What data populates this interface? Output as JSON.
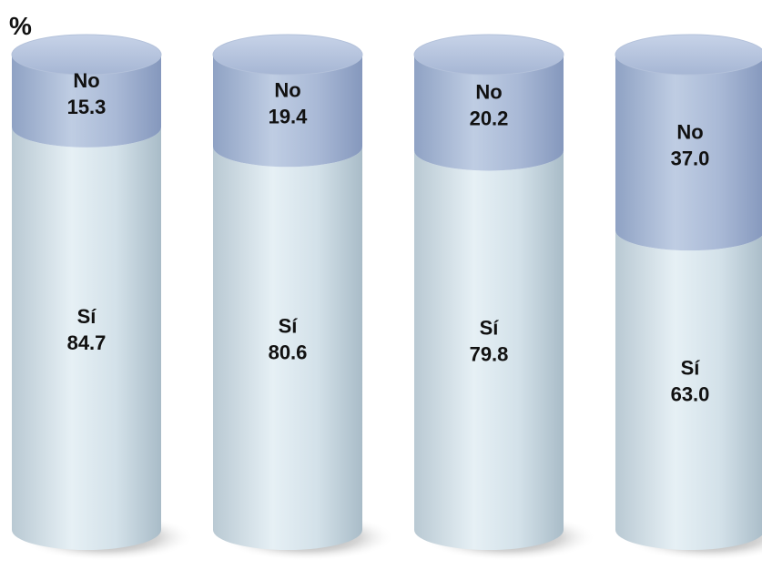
{
  "chart_data": {
    "type": "bar",
    "stacked": true,
    "style": "3d-cylinder",
    "unit_label": "%",
    "categories": [
      "",
      "",
      "",
      ""
    ],
    "series": [
      {
        "name": "Sí",
        "values": [
          84.7,
          80.6,
          79.8,
          63.0
        ],
        "color": "#d6e3ea"
      },
      {
        "name": "No",
        "values": [
          15.3,
          19.4,
          20.2,
          37.0
        ],
        "color": "#a8b9d6"
      }
    ],
    "ylim": [
      0,
      100
    ],
    "grid": false,
    "legend": "none"
  }
}
